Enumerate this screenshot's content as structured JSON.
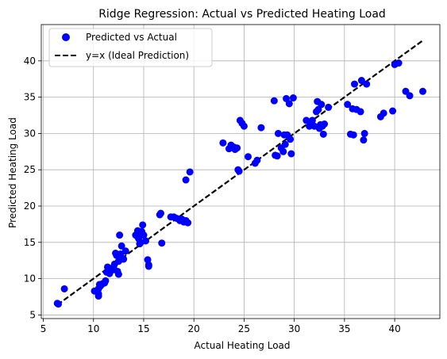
{
  "chart_data": {
    "type": "scatter",
    "title": "Ridge Regression: Actual vs Predicted Heating Load",
    "xlabel": "Actual Heating Load",
    "ylabel": "Predicted Heating Load",
    "xlim": [
      4.8,
      44.5
    ],
    "ylim": [
      4.5,
      45
    ],
    "xticks": [
      5,
      10,
      15,
      20,
      25,
      30,
      35,
      40
    ],
    "yticks": [
      5,
      10,
      15,
      20,
      25,
      30,
      35,
      40
    ],
    "grid": true,
    "legend_position": "top-left",
    "series": [
      {
        "name": "Predicted vs Actual",
        "kind": "scatter",
        "color": "#0000ff",
        "points": [
          [
            6.4,
            6.6
          ],
          [
            6.5,
            6.5
          ],
          [
            7.1,
            8.6
          ],
          [
            10.1,
            8.3
          ],
          [
            10.5,
            8.6
          ],
          [
            10.5,
            7.6
          ],
          [
            10.5,
            7.9
          ],
          [
            10.6,
            9.2
          ],
          [
            10.7,
            9.0
          ],
          [
            10.9,
            9.3
          ],
          [
            11.1,
            9.4
          ],
          [
            11.2,
            9.7
          ],
          [
            11.3,
            10.9
          ],
          [
            11.4,
            11.6
          ],
          [
            11.6,
            10.7
          ],
          [
            11.7,
            11.1
          ],
          [
            11.9,
            11.2
          ],
          [
            12.0,
            11.6
          ],
          [
            12.1,
            12.0
          ],
          [
            12.2,
            13.5
          ],
          [
            12.3,
            13.2
          ],
          [
            12.4,
            11.0
          ],
          [
            12.5,
            10.6
          ],
          [
            12.5,
            12.4
          ],
          [
            12.6,
            16.0
          ],
          [
            12.7,
            13.4
          ],
          [
            12.8,
            14.5
          ],
          [
            12.9,
            12.7
          ],
          [
            13.0,
            12.7
          ],
          [
            13.2,
            13.8
          ],
          [
            14.2,
            16.0
          ],
          [
            14.3,
            15.9
          ],
          [
            14.4,
            16.6
          ],
          [
            14.5,
            15.5
          ],
          [
            14.6,
            14.8
          ],
          [
            14.7,
            15.0
          ],
          [
            14.8,
            16.5
          ],
          [
            14.9,
            17.4
          ],
          [
            15.0,
            16.0
          ],
          [
            15.2,
            15.2
          ],
          [
            15.4,
            12.6
          ],
          [
            15.5,
            11.9
          ],
          [
            15.5,
            11.7
          ],
          [
            16.6,
            18.8
          ],
          [
            16.7,
            19.0
          ],
          [
            16.8,
            14.9
          ],
          [
            17.7,
            18.5
          ],
          [
            18.0,
            18.5
          ],
          [
            18.3,
            18.3
          ],
          [
            18.6,
            18.0
          ],
          [
            18.8,
            18.2
          ],
          [
            19.0,
            17.8
          ],
          [
            19.2,
            18.0
          ],
          [
            19.4,
            17.7
          ],
          [
            19.2,
            23.6
          ],
          [
            19.6,
            24.7
          ],
          [
            22.9,
            28.7
          ],
          [
            23.5,
            27.9
          ],
          [
            23.7,
            28.4
          ],
          [
            24.0,
            28.1
          ],
          [
            24.1,
            27.8
          ],
          [
            24.3,
            28.0
          ],
          [
            24.4,
            25.0
          ],
          [
            24.5,
            24.8
          ],
          [
            24.6,
            31.8
          ],
          [
            24.8,
            31.4
          ],
          [
            25.0,
            31.0
          ],
          [
            25.4,
            26.8
          ],
          [
            26.1,
            25.9
          ],
          [
            26.3,
            26.3
          ],
          [
            26.7,
            30.8
          ],
          [
            28.0,
            34.5
          ],
          [
            28.1,
            27.0
          ],
          [
            28.3,
            26.9
          ],
          [
            28.4,
            30.0
          ],
          [
            28.7,
            28.0
          ],
          [
            28.9,
            27.5
          ],
          [
            29.0,
            29.8
          ],
          [
            29.1,
            28.5
          ],
          [
            29.2,
            34.8
          ],
          [
            29.3,
            29.8
          ],
          [
            29.5,
            34.1
          ],
          [
            29.6,
            29.2
          ],
          [
            29.7,
            27.2
          ],
          [
            29.9,
            34.9
          ],
          [
            31.2,
            31.8
          ],
          [
            31.5,
            31.0
          ],
          [
            31.8,
            31.8
          ],
          [
            32.0,
            31.0
          ],
          [
            32.2,
            33.0
          ],
          [
            32.3,
            34.4
          ],
          [
            32.4,
            33.3
          ],
          [
            32.5,
            30.7
          ],
          [
            32.6,
            31.2
          ],
          [
            32.7,
            34.0
          ],
          [
            32.8,
            31.0
          ],
          [
            32.9,
            29.9
          ],
          [
            33.0,
            31.3
          ],
          [
            33.4,
            33.6
          ],
          [
            35.3,
            34.0
          ],
          [
            35.6,
            29.9
          ],
          [
            35.8,
            33.4
          ],
          [
            35.9,
            29.8
          ],
          [
            36.0,
            36.8
          ],
          [
            36.2,
            33.3
          ],
          [
            36.6,
            33.0
          ],
          [
            36.7,
            37.3
          ],
          [
            36.9,
            29.1
          ],
          [
            37.0,
            30.0
          ],
          [
            37.2,
            36.8
          ],
          [
            38.6,
            32.3
          ],
          [
            38.9,
            32.8
          ],
          [
            39.8,
            33.1
          ],
          [
            40.0,
            39.5
          ],
          [
            40.4,
            39.7
          ],
          [
            41.1,
            35.8
          ],
          [
            41.5,
            35.2
          ],
          [
            42.8,
            35.8
          ]
        ]
      },
      {
        "name": "y=x (Ideal Prediction)",
        "kind": "line",
        "color": "#000000",
        "style": "dashed",
        "x": [
          6.4,
          42.8
        ],
        "y": [
          6.4,
          42.8
        ]
      }
    ]
  }
}
